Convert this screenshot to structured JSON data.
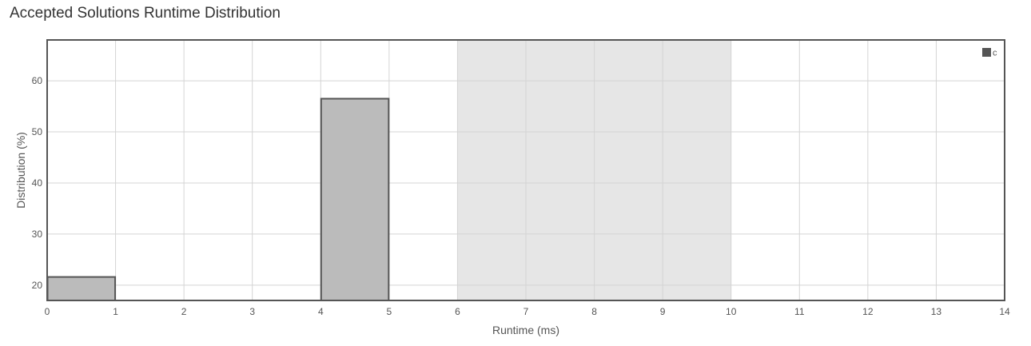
{
  "page": {
    "title": "Accepted Solutions Runtime Distribution"
  },
  "chart_data": {
    "type": "bar",
    "title": "Accepted Solutions Runtime Distribution",
    "xlabel": "Runtime (ms)",
    "ylabel": "Distribution (%)",
    "xlim": [
      0,
      14
    ],
    "ylim": [
      17,
      68
    ],
    "x_ticks": [
      0,
      1,
      2,
      3,
      4,
      5,
      6,
      7,
      8,
      9,
      10,
      11,
      12,
      13,
      14
    ],
    "y_ticks": [
      20,
      30,
      40,
      50,
      60
    ],
    "grid": true,
    "legend_position": "top-right",
    "highlight_band": {
      "from": 6,
      "to": 10,
      "color": "#e6e6e6"
    },
    "series": [
      {
        "name": "c",
        "color": "#bbbbbb",
        "border_color": "#555555",
        "bins": [
          {
            "from": 0,
            "to": 1,
            "value": 21.6
          },
          {
            "from": 4,
            "to": 5,
            "value": 56.5
          }
        ]
      }
    ]
  }
}
